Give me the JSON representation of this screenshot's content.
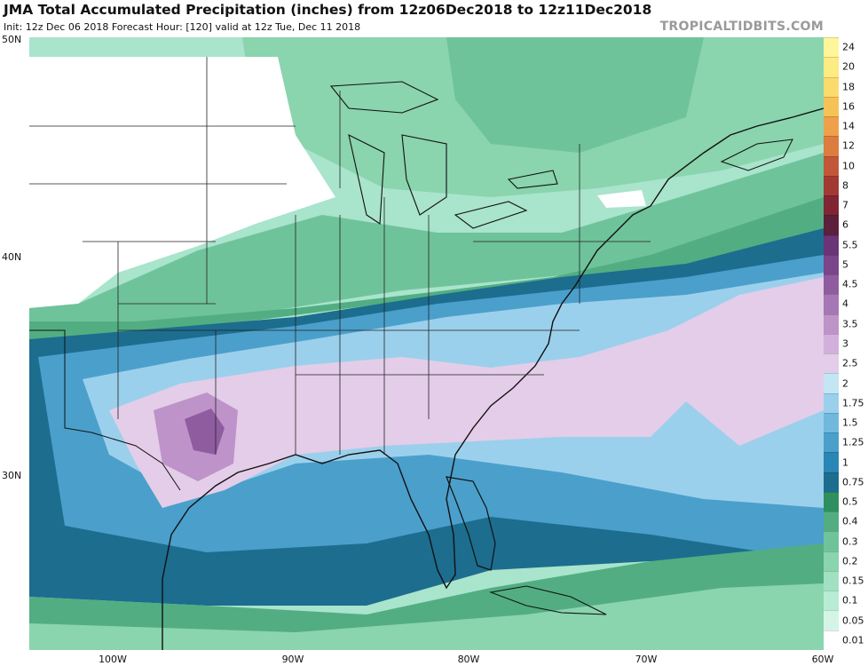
{
  "header": {
    "title": "JMA Total Accumulated Precipitation (inches) from 12z06Dec2018 to 12z11Dec2018",
    "subtitle": "Init: 12z Dec 06 2018   Forecast Hour: [120]   valid at 12z Tue, Dec 11 2018",
    "brand": "TROPICALTIDBITS.COM"
  },
  "map": {
    "region": "Eastern United States and western Atlantic",
    "lat_labels": [
      "50N",
      "40N",
      "30N"
    ],
    "lon_labels": [
      "100W",
      "90W",
      "80W",
      "70W",
      "60W"
    ]
  },
  "legend": {
    "units": "inches",
    "levels": [
      "0.01",
      "0.05",
      "0.1",
      "0.15",
      "0.2",
      "0.3",
      "0.4",
      "0.5",
      "0.75",
      "1",
      "1.25",
      "1.5",
      "1.75",
      "2",
      "2.5",
      "3",
      "3.5",
      "4",
      "4.5",
      "5",
      "5.5",
      "6",
      "7",
      "8",
      "10",
      "12",
      "14",
      "16",
      "18",
      "20",
      "24"
    ],
    "colors": [
      "#ffffff",
      "#d4f5e6",
      "#b8ecd4",
      "#a1e1c2",
      "#8ad4ae",
      "#6fc39a",
      "#52ae82",
      "#2f8f60",
      "#1d6d8f",
      "#2a86b4",
      "#4b9fcb",
      "#72b8dd",
      "#9bd0ec",
      "#c3e6f5",
      "#e3cde8",
      "#d1b1db",
      "#bd93c9",
      "#a677b5",
      "#8f5ca0",
      "#7a458b",
      "#6a3476",
      "#5c1f3c",
      "#7f2632",
      "#a23a33",
      "#c25638",
      "#dc7c3e",
      "#eea04a",
      "#f6c258",
      "#fbdb6d",
      "#fdeb83",
      "#fff59a"
    ]
  },
  "chart_data": {
    "type": "heatmap",
    "title": "JMA Total Accumulated Precipitation (inches) from 12z06Dec2018 to 12z11Dec2018",
    "x_axis": [
      "100W",
      "90W",
      "80W",
      "70W",
      "60W"
    ],
    "y_axis": [
      "50N",
      "40N",
      "30N"
    ],
    "lon_range": [
      -105,
      -60
    ],
    "lat_range": [
      22,
      50
    ],
    "units": "inches",
    "features": [
      {
        "region": "central Texas",
        "precip_in": "4-4.5"
      },
      {
        "region": "Gulf Coast states to South Carolina",
        "precip_in": "2-3"
      },
      {
        "region": "offshore Atlantic east of Carolinas",
        "precip_in": "2-3"
      },
      {
        "region": "Ohio Valley / Mid-Atlantic",
        "precip_in": "0.75-1.75"
      },
      {
        "region": "Great Lakes / Northeast",
        "precip_in": "0.1-0.4"
      },
      {
        "region": "northern Plains",
        "precip_in": "<0.01"
      }
    ]
  }
}
